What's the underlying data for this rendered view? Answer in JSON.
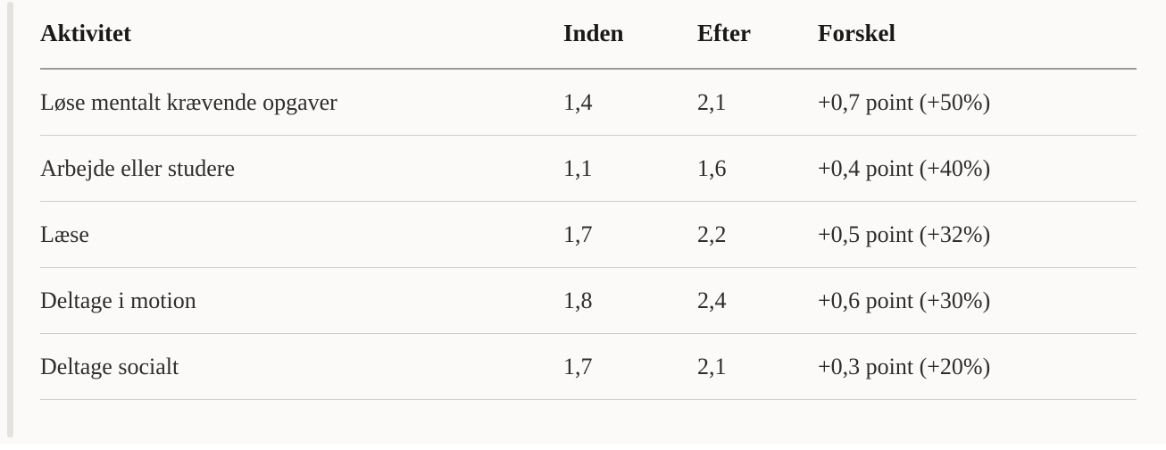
{
  "colors": {
    "page_background": "#fbfaf8",
    "scrollbar_thumb": "#e4e2de",
    "header_rule": "#9b9a98",
    "row_divider": "#cfccc8",
    "header_text": "#1a1918",
    "body_text": "#2e2d2b"
  },
  "table": {
    "columns": {
      "activity": "Aktivitet",
      "before": "Inden",
      "after": "Efter",
      "difference": "Forskel"
    },
    "rows": [
      {
        "activity": "Løse mentalt krævende opgaver",
        "before": "1,4",
        "after": "2,1",
        "difference": "+0,7 point (+50%)"
      },
      {
        "activity": "Arbejde eller studere",
        "before": "1,1",
        "after": "1,6",
        "difference": "+0,4 point (+40%)"
      },
      {
        "activity": "Læse",
        "before": "1,7",
        "after": "2,2",
        "difference": "+0,5 point (+32%)"
      },
      {
        "activity": "Deltage i motion",
        "before": "1,8",
        "after": "2,4",
        "difference": "+0,6 point (+30%)"
      },
      {
        "activity": "Deltage socialt",
        "before": "1,7",
        "after": "2,1",
        "difference": "+0,3 point (+20%)"
      }
    ]
  },
  "chart_data": {
    "type": "table",
    "title": "",
    "columns": [
      "Aktivitet",
      "Inden",
      "Efter",
      "Forskel"
    ],
    "categories": [
      "Løse mentalt krævende opgaver",
      "Arbejde eller studere",
      "Læse",
      "Deltage i motion",
      "Deltage socialt"
    ],
    "series": [
      {
        "name": "Inden",
        "values": [
          1.4,
          1.1,
          1.7,
          1.8,
          1.7
        ]
      },
      {
        "name": "Efter",
        "values": [
          2.1,
          1.6,
          2.2,
          2.4,
          2.1
        ]
      },
      {
        "name": "Forskel",
        "values": [
          "+0,7 point (+50%)",
          "+0,4 point (+40%)",
          "+0,5 point (+32%)",
          "+0,6 point (+30%)",
          "+0,3 point (+20%)"
        ]
      }
    ]
  }
}
